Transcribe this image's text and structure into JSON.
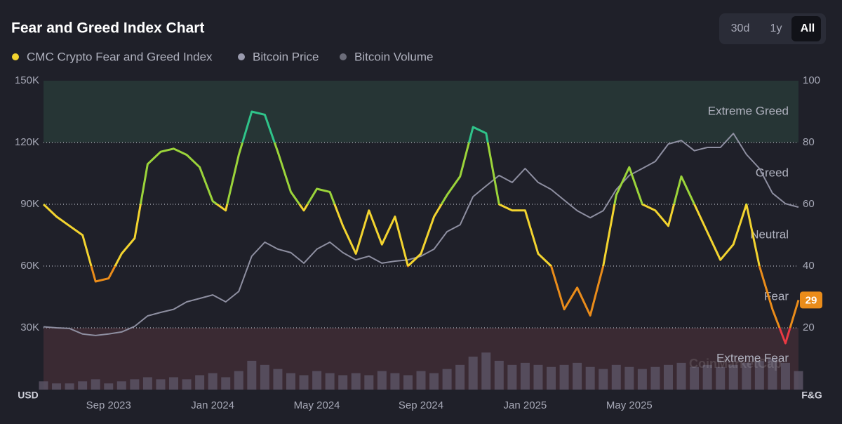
{
  "header": {
    "title": "Fear and Greed Index Chart",
    "buttons": [
      "30d",
      "1y",
      "All"
    ],
    "active_button": 2,
    "watermark": "CoinMarketCap"
  },
  "chart_data": {
    "type": "line",
    "left_axis_label": "USD",
    "right_axis_label": "F&G",
    "categories": [
      null,
      null,
      null,
      null,
      null,
      "Sep 2023",
      null,
      null,
      null,
      null,
      null,
      null,
      null,
      "Jan 2024",
      null,
      null,
      null,
      null,
      null,
      null,
      null,
      "May 2024",
      null,
      null,
      null,
      null,
      null,
      null,
      null,
      "Sep 2024",
      null,
      null,
      null,
      null,
      null,
      null,
      null,
      "Jan 2025",
      null,
      null,
      null,
      null,
      null,
      null,
      null,
      "May 2025",
      null,
      null,
      null,
      null,
      null,
      null,
      null,
      null,
      null,
      null,
      null,
      null,
      null
    ],
    "series": [
      {
        "name": "CMC Crypto Fear and Greed Index",
        "color": "#f3d42f",
        "axis": "y2",
        "values": [
          60,
          56,
          53,
          50,
          35,
          36,
          44,
          49,
          73,
          77,
          78,
          76,
          72,
          61,
          58,
          76,
          90,
          89,
          77,
          64,
          58,
          65,
          64,
          53,
          44,
          58,
          47,
          56,
          40,
          44,
          56,
          63,
          69,
          85,
          83,
          60,
          58,
          58,
          44,
          40,
          26,
          33,
          24,
          40,
          63,
          72,
          60,
          58,
          53,
          69,
          60,
          51,
          42,
          47,
          60,
          40,
          26,
          15,
          29
        ]
      },
      {
        "name": "Bitcoin Price",
        "color": "#8e8fa1",
        "axis": "y",
        "values": [
          30500,
          30000,
          29700,
          27000,
          26300,
          27000,
          28000,
          30700,
          35800,
          37500,
          39000,
          42600,
          44300,
          46000,
          42600,
          47700,
          64800,
          71600,
          68200,
          66500,
          61400,
          68200,
          71600,
          66500,
          63000,
          64800,
          61400,
          62400,
          63000,
          64800,
          68200,
          76700,
          80000,
          93700,
          98900,
          104000,
          100600,
          107400,
          100600,
          97200,
          92000,
          86900,
          83500,
          86900,
          97200,
          104000,
          107400,
          110800,
          119300,
          121000,
          116000,
          117600,
          117600,
          124400,
          114200,
          107400,
          95400,
          90300,
          88600
        ]
      },
      {
        "name": "Bitcoin Volume",
        "color": "#5d5566",
        "axis": "y3",
        "values": [
          4,
          3,
          3,
          4,
          5,
          3,
          4,
          5,
          6,
          5,
          6,
          5,
          7,
          8,
          6,
          9,
          14,
          12,
          10,
          8,
          7,
          9,
          8,
          7,
          8,
          7,
          9,
          8,
          7,
          9,
          8,
          10,
          12,
          16,
          18,
          14,
          12,
          13,
          12,
          11,
          12,
          13,
          11,
          10,
          12,
          11,
          10,
          11,
          12,
          13,
          11,
          12,
          11,
          12,
          13,
          14,
          15,
          13,
          9
        ]
      }
    ],
    "ylim": [
      0,
      150000
    ],
    "yticks": [
      {
        "value": 30000,
        "label": "30K"
      },
      {
        "value": 60000,
        "label": "60K"
      },
      {
        "value": 90000,
        "label": "90K"
      },
      {
        "value": 120000,
        "label": "120K"
      },
      {
        "value": 150000,
        "label": "150K"
      }
    ],
    "y2lim": [
      0,
      100
    ],
    "y2ticks": [
      20,
      40,
      60,
      80,
      100
    ],
    "y3lim": [
      0,
      150
    ],
    "zones": [
      {
        "label": "Extreme Fear",
        "from": 0,
        "to": 20,
        "fill": "#3a2a33",
        "line": "#ea3943"
      },
      {
        "label": "Fear",
        "from": 20,
        "to": 40,
        "fill": null,
        "line": "#ea8c1a"
      },
      {
        "label": "Neutral",
        "from": 40,
        "to": 60,
        "fill": null,
        "line": "#f3d42f"
      },
      {
        "label": "Greed",
        "from": 60,
        "to": 80,
        "fill": null,
        "line": "#9bd43a"
      },
      {
        "label": "Extreme Greed",
        "from": 80,
        "to": 100,
        "fill": "#263535",
        "line": "#2fc48a"
      }
    ],
    "grid": true
  }
}
